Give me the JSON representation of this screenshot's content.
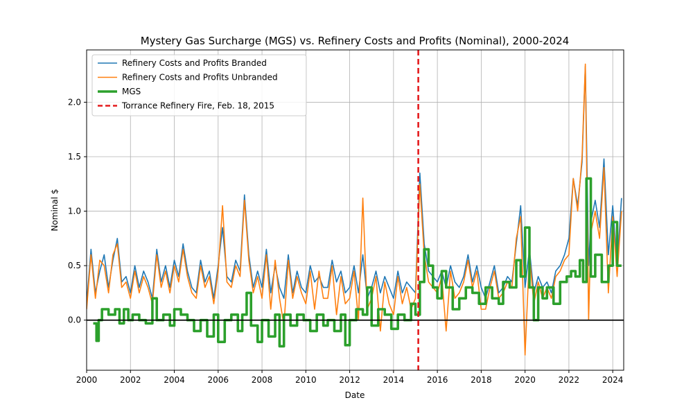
{
  "chart_data": {
    "type": "line",
    "title": "Mystery Gas Surcharge (MGS) vs. Refinery Costs and Profits (Nominal), 2000-2024",
    "xlabel": "Date",
    "ylabel": "Nominal $",
    "xlim": [
      2000,
      2024.5
    ],
    "ylim": [
      -0.46,
      2.48
    ],
    "x_ticks": [
      2000,
      2002,
      2004,
      2006,
      2008,
      2010,
      2012,
      2014,
      2016,
      2018,
      2020,
      2022,
      2024
    ],
    "y_ticks": [
      0.0,
      0.5,
      1.0,
      1.5,
      2.0
    ],
    "grid": true,
    "legend_position": "top-left",
    "zero_line": {
      "y": 0.0,
      "color": "#000000"
    },
    "event_line": {
      "x": 2015.13,
      "label": "Torrance Refinery Fire, Feb. 18, 2015",
      "color": "#e41a1c",
      "style": "dashed"
    },
    "series": [
      {
        "name": "Refinery Costs and Profits Branded",
        "color": "#1f77b4",
        "x": [
          2000.0,
          2000.2,
          2000.4,
          2000.6,
          2000.8,
          2001.0,
          2001.2,
          2001.4,
          2001.6,
          2001.8,
          2002.0,
          2002.2,
          2002.4,
          2002.6,
          2002.8,
          2003.0,
          2003.2,
          2003.4,
          2003.6,
          2003.8,
          2004.0,
          2004.2,
          2004.4,
          2004.6,
          2004.8,
          2005.0,
          2005.2,
          2005.4,
          2005.6,
          2005.8,
          2006.0,
          2006.2,
          2006.4,
          2006.6,
          2006.8,
          2007.0,
          2007.2,
          2007.4,
          2007.6,
          2007.8,
          2008.0,
          2008.2,
          2008.4,
          2008.6,
          2008.8,
          2009.0,
          2009.2,
          2009.4,
          2009.6,
          2009.8,
          2010.0,
          2010.2,
          2010.4,
          2010.6,
          2010.8,
          2011.0,
          2011.2,
          2011.4,
          2011.6,
          2011.8,
          2012.0,
          2012.2,
          2012.4,
          2012.6,
          2012.8,
          2013.0,
          2013.2,
          2013.4,
          2013.6,
          2013.8,
          2014.0,
          2014.2,
          2014.4,
          2014.6,
          2014.8,
          2015.0,
          2015.2,
          2015.4,
          2015.6,
          2015.8,
          2016.0,
          2016.2,
          2016.4,
          2016.6,
          2016.8,
          2017.0,
          2017.2,
          2017.4,
          2017.6,
          2017.8,
          2018.0,
          2018.2,
          2018.4,
          2018.6,
          2018.8,
          2019.0,
          2019.2,
          2019.4,
          2019.6,
          2019.8,
          2020.0,
          2020.2,
          2020.4,
          2020.6,
          2020.8,
          2021.0,
          2021.2,
          2021.4,
          2021.6,
          2021.8,
          2022.0,
          2022.2,
          2022.4,
          2022.6,
          2022.75,
          2022.9,
          2023.0,
          2023.2,
          2023.4,
          2023.6,
          2023.8,
          2024.0,
          2024.2,
          2024.4
        ],
        "y": [
          0.15,
          0.65,
          0.25,
          0.45,
          0.6,
          0.3,
          0.55,
          0.75,
          0.35,
          0.4,
          0.25,
          0.5,
          0.3,
          0.45,
          0.35,
          0.2,
          0.65,
          0.35,
          0.5,
          0.3,
          0.55,
          0.4,
          0.7,
          0.45,
          0.3,
          0.25,
          0.55,
          0.35,
          0.45,
          0.2,
          0.5,
          0.85,
          0.4,
          0.35,
          0.55,
          0.45,
          1.15,
          0.6,
          0.3,
          0.45,
          0.3,
          0.65,
          0.25,
          0.5,
          0.3,
          0.2,
          0.6,
          0.25,
          0.45,
          0.3,
          0.25,
          0.5,
          0.35,
          0.4,
          0.3,
          0.3,
          0.55,
          0.35,
          0.45,
          0.25,
          0.3,
          0.5,
          0.25,
          0.6,
          0.2,
          0.3,
          0.45,
          0.25,
          0.4,
          0.3,
          0.2,
          0.45,
          0.25,
          0.35,
          0.3,
          0.25,
          1.35,
          0.7,
          0.45,
          0.4,
          0.35,
          0.45,
          0.3,
          0.5,
          0.35,
          0.3,
          0.4,
          0.6,
          0.35,
          0.5,
          0.3,
          0.2,
          0.35,
          0.5,
          0.25,
          0.3,
          0.4,
          0.35,
          0.7,
          1.05,
          0.3,
          0.65,
          0.25,
          0.4,
          0.3,
          0.35,
          0.25,
          0.45,
          0.5,
          0.6,
          0.75,
          1.3,
          1.05,
          1.45,
          2.33,
          0.5,
          0.9,
          1.1,
          0.85,
          1.48,
          0.6,
          1.05,
          0.5,
          1.12
        ]
      },
      {
        "name": "Refinery Costs and Profits Unbranded",
        "color": "#ff7f0e",
        "x": [
          2000.0,
          2000.2,
          2000.4,
          2000.6,
          2000.8,
          2001.0,
          2001.2,
          2001.4,
          2001.6,
          2001.8,
          2002.0,
          2002.2,
          2002.4,
          2002.6,
          2002.8,
          2003.0,
          2003.2,
          2003.4,
          2003.6,
          2003.8,
          2004.0,
          2004.2,
          2004.4,
          2004.6,
          2004.8,
          2005.0,
          2005.2,
          2005.4,
          2005.6,
          2005.8,
          2006.0,
          2006.2,
          2006.4,
          2006.6,
          2006.8,
          2007.0,
          2007.2,
          2007.4,
          2007.6,
          2007.8,
          2008.0,
          2008.2,
          2008.4,
          2008.6,
          2008.8,
          2009.0,
          2009.2,
          2009.4,
          2009.6,
          2009.8,
          2010.0,
          2010.2,
          2010.4,
          2010.6,
          2010.8,
          2011.0,
          2011.2,
          2011.4,
          2011.6,
          2011.8,
          2012.0,
          2012.2,
          2012.4,
          2012.6,
          2012.8,
          2013.0,
          2013.2,
          2013.4,
          2013.6,
          2013.8,
          2014.0,
          2014.2,
          2014.4,
          2014.6,
          2014.8,
          2015.0,
          2015.2,
          2015.4,
          2015.6,
          2015.8,
          2016.0,
          2016.2,
          2016.4,
          2016.6,
          2016.8,
          2017.0,
          2017.2,
          2017.4,
          2017.6,
          2017.8,
          2018.0,
          2018.2,
          2018.4,
          2018.6,
          2018.8,
          2019.0,
          2019.2,
          2019.4,
          2019.6,
          2019.8,
          2020.0,
          2020.2,
          2020.4,
          2020.6,
          2020.8,
          2021.0,
          2021.2,
          2021.4,
          2021.6,
          2021.8,
          2022.0,
          2022.2,
          2022.4,
          2022.6,
          2022.75,
          2022.9,
          2023.0,
          2023.2,
          2023.4,
          2023.6,
          2023.8,
          2024.0,
          2024.2,
          2024.4
        ],
        "y": [
          0.1,
          0.6,
          0.2,
          0.55,
          0.5,
          0.25,
          0.6,
          0.7,
          0.3,
          0.35,
          0.2,
          0.45,
          0.25,
          0.4,
          0.3,
          0.15,
          0.6,
          0.3,
          0.45,
          0.25,
          0.5,
          0.35,
          0.65,
          0.4,
          0.25,
          0.2,
          0.5,
          0.3,
          0.4,
          0.15,
          0.45,
          1.05,
          0.35,
          0.3,
          0.5,
          0.4,
          1.1,
          0.55,
          0.25,
          0.4,
          0.2,
          0.6,
          0.1,
          0.55,
          0.2,
          -0.05,
          0.55,
          0.2,
          0.4,
          0.25,
          0.15,
          0.45,
          0.1,
          0.45,
          0.2,
          0.2,
          0.5,
          0.05,
          0.4,
          0.15,
          0.2,
          0.45,
          0.0,
          1.12,
          0.1,
          0.2,
          0.4,
          -0.1,
          0.35,
          0.15,
          0.05,
          0.4,
          0.15,
          0.3,
          0.1,
          0.2,
          1.25,
          0.6,
          0.35,
          0.3,
          0.25,
          0.4,
          -0.1,
          0.45,
          0.2,
          0.25,
          0.35,
          0.55,
          0.3,
          0.45,
          0.1,
          0.1,
          0.3,
          0.45,
          0.2,
          0.25,
          0.35,
          0.3,
          0.75,
          0.95,
          -0.32,
          0.6,
          0.15,
          0.35,
          0.2,
          0.3,
          0.2,
          0.4,
          0.45,
          0.55,
          0.6,
          1.3,
          1.0,
          1.5,
          2.35,
          0.0,
          0.8,
          1.0,
          0.75,
          1.4,
          0.25,
          0.95,
          0.4,
          1.0
        ]
      },
      {
        "name": "MGS",
        "color": "#2ca02c",
        "x": [
          2000.3,
          2000.45,
          2000.55,
          2000.7,
          2001.0,
          2001.3,
          2001.5,
          2001.7,
          2001.9,
          2002.1,
          2002.4,
          2002.7,
          2003.0,
          2003.2,
          2003.5,
          2003.8,
          2004.0,
          2004.3,
          2004.6,
          2004.9,
          2005.2,
          2005.5,
          2005.8,
          2006.0,
          2006.3,
          2006.6,
          2006.9,
          2007.1,
          2007.3,
          2007.5,
          2007.8,
          2008.0,
          2008.3,
          2008.6,
          2008.8,
          2009.0,
          2009.3,
          2009.6,
          2009.9,
          2010.2,
          2010.5,
          2010.8,
          2011.0,
          2011.3,
          2011.6,
          2011.8,
          2012.0,
          2012.3,
          2012.6,
          2012.8,
          2013.0,
          2013.3,
          2013.6,
          2013.9,
          2014.2,
          2014.5,
          2014.8,
          2015.0,
          2015.2,
          2015.4,
          2015.6,
          2015.8,
          2016.0,
          2016.2,
          2016.4,
          2016.7,
          2017.0,
          2017.3,
          2017.6,
          2017.9,
          2018.2,
          2018.5,
          2018.8,
          2019.0,
          2019.3,
          2019.6,
          2019.8,
          2020.0,
          2020.2,
          2020.4,
          2020.6,
          2020.8,
          2021.0,
          2021.3,
          2021.6,
          2021.9,
          2022.1,
          2022.3,
          2022.5,
          2022.65,
          2022.8,
          2023.0,
          2023.2,
          2023.5,
          2023.8,
          2024.0,
          2024.2,
          2024.4
        ],
        "y": [
          -0.03,
          -0.19,
          0.0,
          0.1,
          0.05,
          0.1,
          -0.03,
          0.1,
          0.0,
          0.05,
          0.0,
          -0.03,
          0.2,
          0.0,
          0.05,
          -0.05,
          0.1,
          0.05,
          0.0,
          -0.1,
          0.0,
          -0.15,
          0.05,
          -0.2,
          0.0,
          0.05,
          -0.1,
          0.05,
          0.25,
          -0.05,
          -0.2,
          0.0,
          -0.15,
          0.05,
          -0.24,
          0.05,
          -0.05,
          0.05,
          0.0,
          -0.1,
          0.05,
          -0.05,
          0.0,
          -0.1,
          0.05,
          -0.23,
          0.0,
          0.1,
          0.05,
          0.3,
          -0.05,
          0.1,
          0.05,
          -0.08,
          0.05,
          0.0,
          0.15,
          0.05,
          0.35,
          0.65,
          0.5,
          0.3,
          0.2,
          0.45,
          0.3,
          0.1,
          0.2,
          0.3,
          0.25,
          0.15,
          0.3,
          0.2,
          0.15,
          0.35,
          0.3,
          0.55,
          0.4,
          0.85,
          0.3,
          0.0,
          0.3,
          0.2,
          0.3,
          0.15,
          0.35,
          0.4,
          0.45,
          0.4,
          0.55,
          0.35,
          1.3,
          0.4,
          0.6,
          0.35,
          0.5,
          0.9,
          0.5,
          0.5
        ]
      }
    ]
  },
  "legend": [
    {
      "label": "Refinery Costs and Profits Branded",
      "color": "#1f77b4",
      "style": "solid"
    },
    {
      "label": "Refinery Costs and Profits Unbranded",
      "color": "#ff7f0e",
      "style": "solid"
    },
    {
      "label": "MGS",
      "color": "#2ca02c",
      "style": "thick"
    },
    {
      "label": "Torrance Refinery Fire, Feb. 18, 2015",
      "color": "#e41a1c",
      "style": "dashed"
    }
  ]
}
